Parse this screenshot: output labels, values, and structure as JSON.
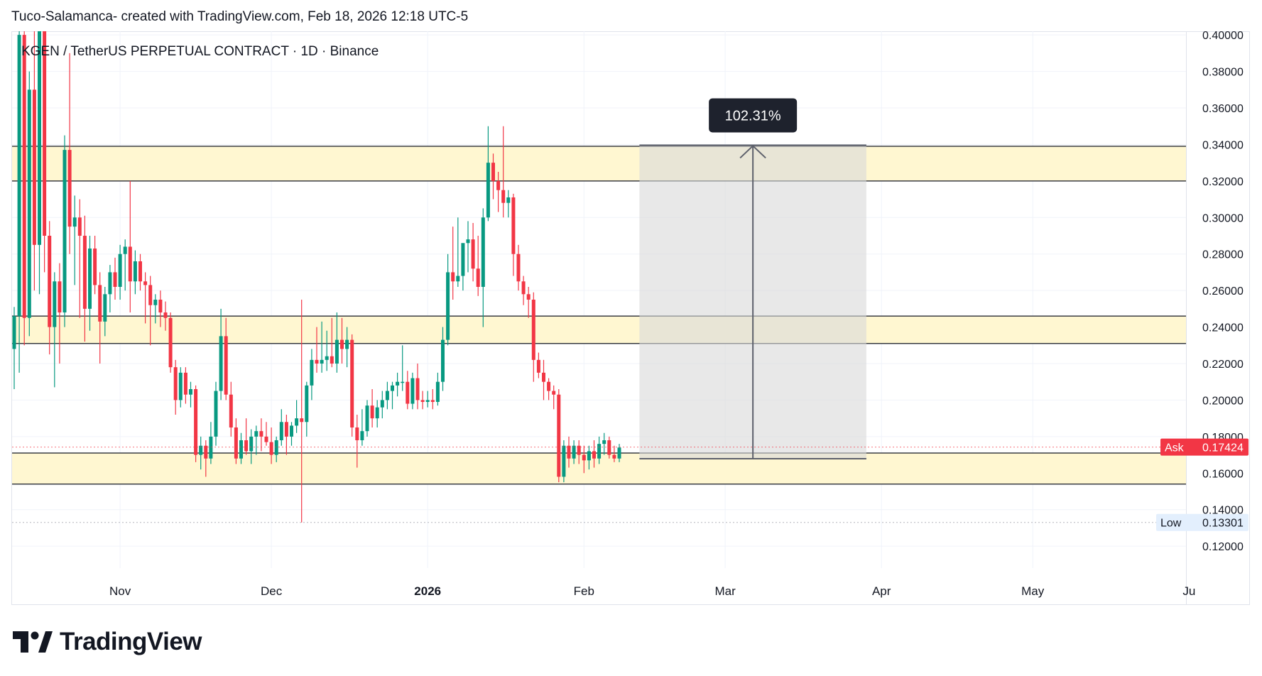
{
  "header": {
    "author_line": "Tuco-Salamanca- created with TradingView.com, Feb 18, 2026 12:18 UTC-5"
  },
  "footer": {
    "brand": "TradingView"
  },
  "chart_data": {
    "type": "candlestick",
    "title": "KGEN / TetherUS PERPETUAL CONTRACT · 1D · Binance",
    "yaxis": {
      "min": 0.108,
      "max": 0.402,
      "ticks": [
        "0.40000",
        "0.38000",
        "0.36000",
        "0.34000",
        "0.32000",
        "0.30000",
        "0.28000",
        "0.26000",
        "0.24000",
        "0.22000",
        "0.20000",
        "0.18000",
        "0.16000",
        "0.14000",
        "0.12000"
      ]
    },
    "xaxis": {
      "labels": [
        {
          "text": "Nov",
          "day": 21
        },
        {
          "text": "Dec",
          "day": 51
        },
        {
          "text": "2026",
          "day": 82,
          "bold": true
        },
        {
          "text": "Feb",
          "day": 113
        },
        {
          "text": "Mar",
          "day": 141
        },
        {
          "text": "Apr",
          "day": 172
        },
        {
          "text": "May",
          "day": 202
        },
        {
          "text": "Ju",
          "day": 233
        }
      ]
    },
    "colors": {
      "up": "#089981",
      "down": "#f23645",
      "zone": "#fff7d1",
      "measure": "#e5e5e5"
    },
    "zones": [
      {
        "top": 0.339,
        "bottom": 0.32
      },
      {
        "top": 0.246,
        "bottom": 0.231
      },
      {
        "top": 0.171,
        "bottom": 0.154
      }
    ],
    "measure": {
      "from_day": 124,
      "to_day": 169,
      "bottom": 0.1679,
      "top": 0.3396,
      "label": "102.31%"
    },
    "price_labels": [
      {
        "name": "Ask",
        "value": "0.17424",
        "price": 0.17424,
        "color": "#f23645"
      },
      {
        "name": "Low",
        "value": "0.13301",
        "price": 0.13301,
        "color": "#e3effd"
      }
    ],
    "candles": [
      {
        "o": 0.228,
        "h": 0.251,
        "l": 0.206,
        "c": 0.246
      },
      {
        "o": 0.246,
        "h": 0.44,
        "l": 0.215,
        "c": 0.4
      },
      {
        "o": 0.4,
        "h": 0.43,
        "l": 0.23,
        "c": 0.245
      },
      {
        "o": 0.245,
        "h": 0.38,
        "l": 0.235,
        "c": 0.37
      },
      {
        "o": 0.37,
        "h": 0.42,
        "l": 0.26,
        "c": 0.285
      },
      {
        "o": 0.285,
        "h": 0.43,
        "l": 0.258,
        "c": 0.42
      },
      {
        "o": 0.42,
        "h": 0.43,
        "l": 0.27,
        "c": 0.29
      },
      {
        "o": 0.29,
        "h": 0.298,
        "l": 0.225,
        "c": 0.24
      },
      {
        "o": 0.24,
        "h": 0.27,
        "l": 0.207,
        "c": 0.265
      },
      {
        "o": 0.265,
        "h": 0.275,
        "l": 0.22,
        "c": 0.248
      },
      {
        "o": 0.248,
        "h": 0.345,
        "l": 0.24,
        "c": 0.337
      },
      {
        "o": 0.337,
        "h": 0.39,
        "l": 0.28,
        "c": 0.295
      },
      {
        "o": 0.295,
        "h": 0.312,
        "l": 0.263,
        "c": 0.3
      },
      {
        "o": 0.3,
        "h": 0.31,
        "l": 0.245,
        "c": 0.29
      },
      {
        "o": 0.29,
        "h": 0.301,
        "l": 0.232,
        "c": 0.25
      },
      {
        "o": 0.25,
        "h": 0.29,
        "l": 0.238,
        "c": 0.283
      },
      {
        "o": 0.283,
        "h": 0.29,
        "l": 0.258,
        "c": 0.263
      },
      {
        "o": 0.263,
        "h": 0.27,
        "l": 0.22,
        "c": 0.243
      },
      {
        "o": 0.243,
        "h": 0.262,
        "l": 0.235,
        "c": 0.258
      },
      {
        "o": 0.258,
        "h": 0.274,
        "l": 0.248,
        "c": 0.27
      },
      {
        "o": 0.27,
        "h": 0.278,
        "l": 0.255,
        "c": 0.262
      },
      {
        "o": 0.262,
        "h": 0.285,
        "l": 0.255,
        "c": 0.28
      },
      {
        "o": 0.28,
        "h": 0.288,
        "l": 0.26,
        "c": 0.284
      },
      {
        "o": 0.284,
        "h": 0.32,
        "l": 0.248,
        "c": 0.265
      },
      {
        "o": 0.265,
        "h": 0.282,
        "l": 0.258,
        "c": 0.276
      },
      {
        "o": 0.276,
        "h": 0.28,
        "l": 0.26,
        "c": 0.265
      },
      {
        "o": 0.265,
        "h": 0.27,
        "l": 0.242,
        "c": 0.263
      },
      {
        "o": 0.263,
        "h": 0.268,
        "l": 0.23,
        "c": 0.252
      },
      {
        "o": 0.252,
        "h": 0.258,
        "l": 0.242,
        "c": 0.255
      },
      {
        "o": 0.255,
        "h": 0.26,
        "l": 0.24,
        "c": 0.248
      },
      {
        "o": 0.248,
        "h": 0.254,
        "l": 0.238,
        "c": 0.245
      },
      {
        "o": 0.245,
        "h": 0.248,
        "l": 0.215,
        "c": 0.218
      },
      {
        "o": 0.218,
        "h": 0.222,
        "l": 0.192,
        "c": 0.2
      },
      {
        "o": 0.2,
        "h": 0.218,
        "l": 0.196,
        "c": 0.215
      },
      {
        "o": 0.215,
        "h": 0.218,
        "l": 0.198,
        "c": 0.203
      },
      {
        "o": 0.203,
        "h": 0.21,
        "l": 0.196,
        "c": 0.206
      },
      {
        "o": 0.206,
        "h": 0.208,
        "l": 0.166,
        "c": 0.17
      },
      {
        "o": 0.17,
        "h": 0.18,
        "l": 0.162,
        "c": 0.175
      },
      {
        "o": 0.175,
        "h": 0.178,
        "l": 0.158,
        "c": 0.168
      },
      {
        "o": 0.168,
        "h": 0.188,
        "l": 0.165,
        "c": 0.18
      },
      {
        "o": 0.18,
        "h": 0.21,
        "l": 0.175,
        "c": 0.205
      },
      {
        "o": 0.205,
        "h": 0.25,
        "l": 0.2,
        "c": 0.235
      },
      {
        "o": 0.235,
        "h": 0.245,
        "l": 0.2,
        "c": 0.203
      },
      {
        "o": 0.203,
        "h": 0.21,
        "l": 0.18,
        "c": 0.185
      },
      {
        "o": 0.185,
        "h": 0.19,
        "l": 0.165,
        "c": 0.168
      },
      {
        "o": 0.168,
        "h": 0.182,
        "l": 0.165,
        "c": 0.178
      },
      {
        "o": 0.178,
        "h": 0.19,
        "l": 0.17,
        "c": 0.172
      },
      {
        "o": 0.172,
        "h": 0.184,
        "l": 0.165,
        "c": 0.18
      },
      {
        "o": 0.18,
        "h": 0.186,
        "l": 0.17,
        "c": 0.183
      },
      {
        "o": 0.183,
        "h": 0.19,
        "l": 0.172,
        "c": 0.18
      },
      {
        "o": 0.18,
        "h": 0.188,
        "l": 0.175,
        "c": 0.177
      },
      {
        "o": 0.177,
        "h": 0.185,
        "l": 0.165,
        "c": 0.17
      },
      {
        "o": 0.17,
        "h": 0.18,
        "l": 0.166,
        "c": 0.178
      },
      {
        "o": 0.178,
        "h": 0.195,
        "l": 0.175,
        "c": 0.188
      },
      {
        "o": 0.188,
        "h": 0.192,
        "l": 0.17,
        "c": 0.18
      },
      {
        "o": 0.18,
        "h": 0.188,
        "l": 0.175,
        "c": 0.186
      },
      {
        "o": 0.186,
        "h": 0.2,
        "l": 0.182,
        "c": 0.19
      },
      {
        "o": 0.19,
        "h": 0.255,
        "l": 0.133,
        "c": 0.188
      },
      {
        "o": 0.188,
        "h": 0.21,
        "l": 0.18,
        "c": 0.208
      },
      {
        "o": 0.208,
        "h": 0.228,
        "l": 0.2,
        "c": 0.222
      },
      {
        "o": 0.222,
        "h": 0.24,
        "l": 0.215,
        "c": 0.22
      },
      {
        "o": 0.22,
        "h": 0.243,
        "l": 0.215,
        "c": 0.222
      },
      {
        "o": 0.222,
        "h": 0.238,
        "l": 0.216,
        "c": 0.224
      },
      {
        "o": 0.224,
        "h": 0.245,
        "l": 0.218,
        "c": 0.22
      },
      {
        "o": 0.22,
        "h": 0.248,
        "l": 0.215,
        "c": 0.233
      },
      {
        "o": 0.233,
        "h": 0.245,
        "l": 0.22,
        "c": 0.228
      },
      {
        "o": 0.228,
        "h": 0.24,
        "l": 0.218,
        "c": 0.233
      },
      {
        "o": 0.233,
        "h": 0.236,
        "l": 0.18,
        "c": 0.185
      },
      {
        "o": 0.185,
        "h": 0.192,
        "l": 0.163,
        "c": 0.178
      },
      {
        "o": 0.178,
        "h": 0.195,
        "l": 0.175,
        "c": 0.183
      },
      {
        "o": 0.183,
        "h": 0.2,
        "l": 0.18,
        "c": 0.197
      },
      {
        "o": 0.197,
        "h": 0.206,
        "l": 0.185,
        "c": 0.19
      },
      {
        "o": 0.19,
        "h": 0.2,
        "l": 0.185,
        "c": 0.196
      },
      {
        "o": 0.196,
        "h": 0.205,
        "l": 0.19,
        "c": 0.2
      },
      {
        "o": 0.2,
        "h": 0.21,
        "l": 0.195,
        "c": 0.205
      },
      {
        "o": 0.205,
        "h": 0.21,
        "l": 0.195,
        "c": 0.208
      },
      {
        "o": 0.208,
        "h": 0.215,
        "l": 0.202,
        "c": 0.21
      },
      {
        "o": 0.21,
        "h": 0.23,
        "l": 0.205,
        "c": 0.21
      },
      {
        "o": 0.21,
        "h": 0.216,
        "l": 0.195,
        "c": 0.198
      },
      {
        "o": 0.198,
        "h": 0.215,
        "l": 0.195,
        "c": 0.212
      },
      {
        "o": 0.212,
        "h": 0.22,
        "l": 0.195,
        "c": 0.2
      },
      {
        "o": 0.2,
        "h": 0.205,
        "l": 0.195,
        "c": 0.199
      },
      {
        "o": 0.199,
        "h": 0.205,
        "l": 0.196,
        "c": 0.2
      },
      {
        "o": 0.2,
        "h": 0.206,
        "l": 0.195,
        "c": 0.199
      },
      {
        "o": 0.199,
        "h": 0.215,
        "l": 0.197,
        "c": 0.21
      },
      {
        "o": 0.21,
        "h": 0.24,
        "l": 0.205,
        "c": 0.233
      },
      {
        "o": 0.233,
        "h": 0.28,
        "l": 0.23,
        "c": 0.27
      },
      {
        "o": 0.27,
        "h": 0.295,
        "l": 0.255,
        "c": 0.265
      },
      {
        "o": 0.265,
        "h": 0.3,
        "l": 0.262,
        "c": 0.268
      },
      {
        "o": 0.268,
        "h": 0.285,
        "l": 0.26,
        "c": 0.286
      },
      {
        "o": 0.286,
        "h": 0.298,
        "l": 0.27,
        "c": 0.288
      },
      {
        "o": 0.288,
        "h": 0.297,
        "l": 0.265,
        "c": 0.272
      },
      {
        "o": 0.272,
        "h": 0.29,
        "l": 0.257,
        "c": 0.262
      },
      {
        "o": 0.262,
        "h": 0.305,
        "l": 0.24,
        "c": 0.3
      },
      {
        "o": 0.3,
        "h": 0.35,
        "l": 0.298,
        "c": 0.33
      },
      {
        "o": 0.33,
        "h": 0.335,
        "l": 0.31,
        "c": 0.32
      },
      {
        "o": 0.32,
        "h": 0.325,
        "l": 0.303,
        "c": 0.315
      },
      {
        "o": 0.315,
        "h": 0.35,
        "l": 0.3,
        "c": 0.308
      },
      {
        "o": 0.308,
        "h": 0.315,
        "l": 0.3,
        "c": 0.311
      },
      {
        "o": 0.311,
        "h": 0.313,
        "l": 0.268,
        "c": 0.28
      },
      {
        "o": 0.28,
        "h": 0.285,
        "l": 0.26,
        "c": 0.265
      },
      {
        "o": 0.265,
        "h": 0.268,
        "l": 0.252,
        "c": 0.258
      },
      {
        "o": 0.258,
        "h": 0.262,
        "l": 0.245,
        "c": 0.255
      },
      {
        "o": 0.255,
        "h": 0.259,
        "l": 0.21,
        "c": 0.222
      },
      {
        "o": 0.222,
        "h": 0.226,
        "l": 0.212,
        "c": 0.215
      },
      {
        "o": 0.215,
        "h": 0.222,
        "l": 0.2,
        "c": 0.21
      },
      {
        "o": 0.21,
        "h": 0.212,
        "l": 0.2,
        "c": 0.205
      },
      {
        "o": 0.205,
        "h": 0.208,
        "l": 0.195,
        "c": 0.203
      },
      {
        "o": 0.203,
        "h": 0.206,
        "l": 0.155,
        "c": 0.158
      },
      {
        "o": 0.158,
        "h": 0.178,
        "l": 0.155,
        "c": 0.175
      },
      {
        "o": 0.175,
        "h": 0.18,
        "l": 0.163,
        "c": 0.168
      },
      {
        "o": 0.168,
        "h": 0.178,
        "l": 0.165,
        "c": 0.175
      },
      {
        "o": 0.175,
        "h": 0.178,
        "l": 0.165,
        "c": 0.17
      },
      {
        "o": 0.17,
        "h": 0.175,
        "l": 0.16,
        "c": 0.167
      },
      {
        "o": 0.167,
        "h": 0.175,
        "l": 0.162,
        "c": 0.172
      },
      {
        "o": 0.172,
        "h": 0.178,
        "l": 0.163,
        "c": 0.168
      },
      {
        "o": 0.168,
        "h": 0.18,
        "l": 0.165,
        "c": 0.176
      },
      {
        "o": 0.176,
        "h": 0.182,
        "l": 0.17,
        "c": 0.178
      },
      {
        "o": 0.178,
        "h": 0.18,
        "l": 0.168,
        "c": 0.17
      },
      {
        "o": 0.17,
        "h": 0.175,
        "l": 0.166,
        "c": 0.168
      },
      {
        "o": 0.168,
        "h": 0.176,
        "l": 0.166,
        "c": 0.174
      }
    ]
  }
}
